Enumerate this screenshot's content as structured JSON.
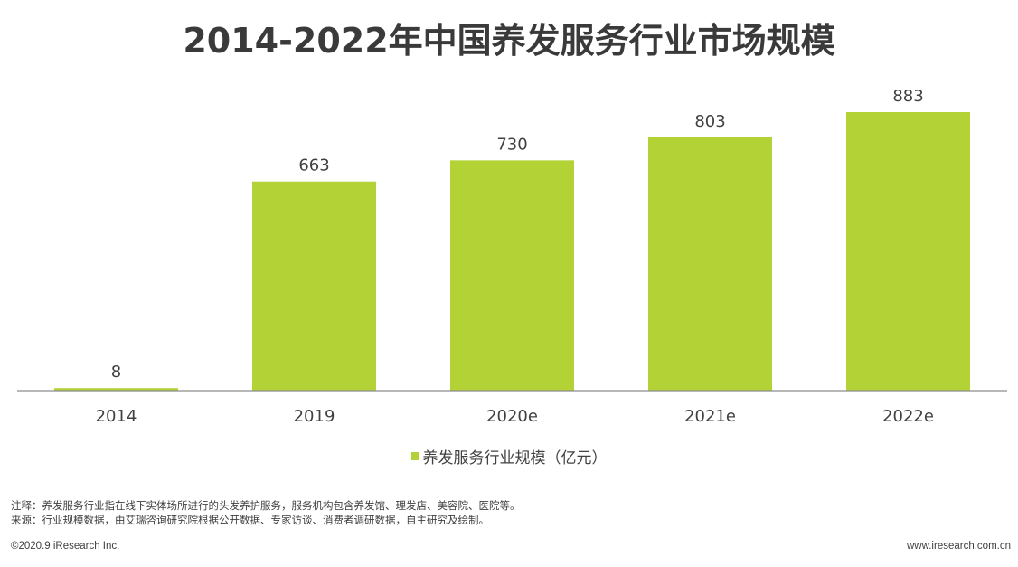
{
  "chart_data": {
    "type": "bar",
    "title": "2014-2022年中国养发服务行业市场规模",
    "categories": [
      "2014",
      "2019",
      "2020e",
      "2021e",
      "2022e"
    ],
    "series": [
      {
        "name": "养发服务行业规模（亿元）",
        "values": [
          8,
          663,
          730,
          803,
          883
        ],
        "color": "#b2d235"
      }
    ],
    "ylim": [
      0,
      883
    ],
    "grid": false,
    "legend_position": "bottom"
  },
  "notes": {
    "note": "注释：养发服务行业指在线下实体场所进行的头发养护服务，服务机构包含养发馆、理发店、美容院、医院等。",
    "source": "来源：行业规模数据，由艾瑞咨询研究院根据公开数据、专家访谈、消费者调研数据，自主研究及绘制。"
  },
  "footer": {
    "copyright": "©2020.9 iResearch Inc.",
    "website": "www.iresearch.com.cn"
  },
  "colors": {
    "bar": "#b2d235",
    "axis": "#8c8c8c",
    "text": "#404040"
  }
}
